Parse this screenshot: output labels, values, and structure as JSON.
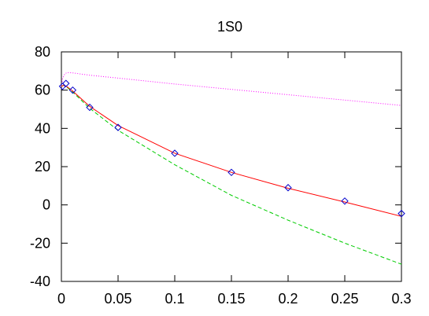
{
  "chart_data": {
    "type": "line",
    "title": "1S0",
    "xlabel": "",
    "ylabel": "",
    "xlim": [
      0,
      0.3
    ],
    "ylim": [
      -40,
      80
    ],
    "grid": false,
    "x_ticks": [
      "0",
      "0.05",
      "0.1",
      "0.15",
      "0.2",
      "0.25",
      "0.3"
    ],
    "y_ticks": [
      "-40",
      "-20",
      "0",
      "20",
      "40",
      "60",
      "80"
    ],
    "x_tick_values": [
      0,
      0.05,
      0.1,
      0.15,
      0.2,
      0.25,
      0.3
    ],
    "y_tick_values": [
      -40,
      -20,
      0,
      20,
      40,
      60,
      80
    ],
    "series": [
      {
        "kind": "line",
        "style": "dotted",
        "color": "#ff00ff",
        "x": [
          0,
          0.001,
          0.003,
          0.005,
          0.01,
          0.025,
          0.05,
          0.1,
          0.15,
          0.2,
          0.25,
          0.3
        ],
        "y": [
          62,
          66,
          68.5,
          69.2,
          69,
          67.8,
          66.3,
          63.2,
          60.4,
          57.6,
          54.8,
          52
        ]
      },
      {
        "kind": "line",
        "style": "dashed",
        "color": "#00cc00",
        "x": [
          0,
          0.002,
          0.005,
          0.01,
          0.025,
          0.05,
          0.1,
          0.15,
          0.2,
          0.25,
          0.3
        ],
        "y": [
          62,
          62.5,
          61.5,
          59,
          50.5,
          39,
          21,
          5,
          -8,
          -20,
          -31
        ]
      },
      {
        "kind": "line",
        "style": "solid",
        "color": "#ff0000",
        "x": [
          0,
          0.002,
          0.005,
          0.01,
          0.025,
          0.05,
          0.1,
          0.15,
          0.2,
          0.25,
          0.3
        ],
        "y": [
          62,
          62.5,
          61.8,
          59.5,
          51.5,
          41.5,
          27,
          17,
          8.7,
          1.5,
          -6
        ]
      },
      {
        "kind": "markers",
        "marker": "diamond",
        "color": "#0000cc",
        "x": [
          0.001,
          0.004,
          0.01,
          0.025,
          0.05,
          0.1,
          0.15,
          0.2,
          0.25,
          0.3
        ],
        "y": [
          62,
          63.5,
          60,
          51,
          40.5,
          27,
          17,
          9,
          2,
          -4.5
        ]
      }
    ]
  }
}
